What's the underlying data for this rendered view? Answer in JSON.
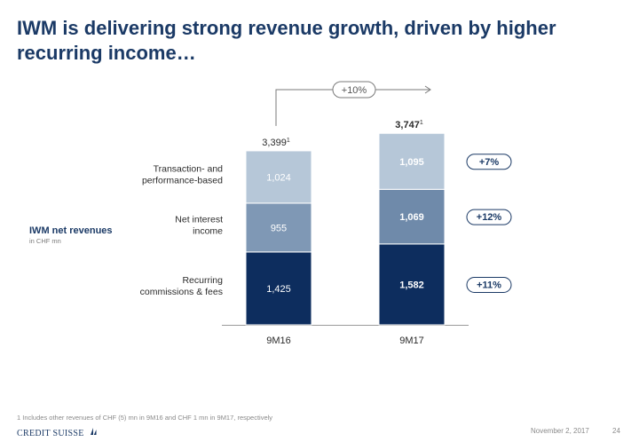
{
  "title": "IWM is delivering strong revenue growth, driven by higher recurring income…",
  "chart_data": {
    "type": "bar",
    "stacked": true,
    "categories": [
      "9M16",
      "9M17"
    ],
    "series": [
      {
        "name": "Recurring commissions & fees",
        "values": [
          1425,
          1582
        ],
        "growth": "+11%"
      },
      {
        "name": "Net interest income",
        "values": [
          955,
          1069
        ],
        "growth": "+12%"
      },
      {
        "name": "Transaction- and performance-based",
        "values": [
          1024,
          1095
        ],
        "growth": "+7%"
      }
    ],
    "series_label_lines": [
      [
        "Recurring",
        "commissions & fees"
      ],
      [
        "Net interest",
        "income"
      ],
      [
        "Transaction- and",
        "performance-based"
      ]
    ],
    "colors": {
      "9M16": [
        "#0d2d5e",
        "#7f98b5",
        "#b6c7d8"
      ],
      "9M17": [
        "#0d2d5e",
        "#6f8aaa",
        "#b6c7d8"
      ]
    },
    "value_labels": {
      "9M16": [
        "1,425",
        "955",
        "1,024"
      ],
      "9M17": [
        "1,582",
        "1,069",
        "1,095"
      ]
    },
    "totals": [
      {
        "value": 3399,
        "label": "3,399",
        "footnote": "1"
      },
      {
        "value": 3747,
        "label": "3,747",
        "footnote": "1"
      }
    ],
    "total_growth": "+10%",
    "ylabel": "IWM net revenues",
    "yunit": "in CHF mn"
  },
  "footnote": "1 Includes other revenues of CHF (5) mn in 9M16 and CHF 1 mn in 9M17, respectively",
  "logo": "CREDIT SUISSE",
  "date": "November 2, 2017",
  "page_number": "24"
}
